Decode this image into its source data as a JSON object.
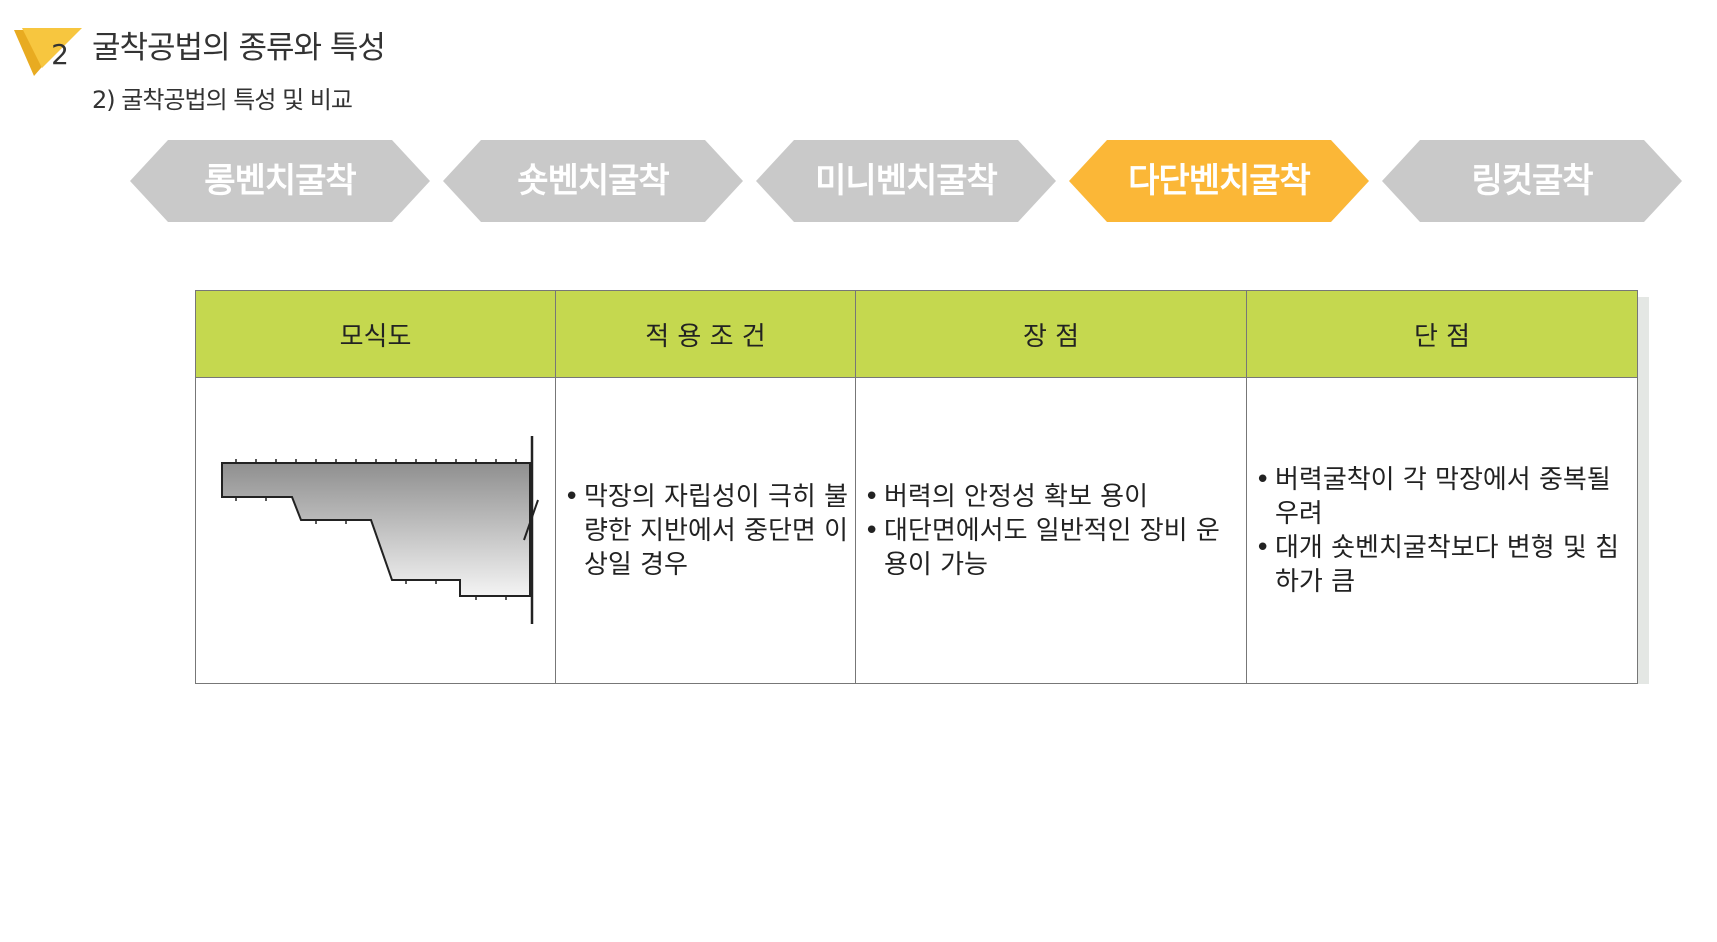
{
  "header": {
    "section_number": "2",
    "section_title": "굴착공법의 종류와 특성",
    "sub_title": "2) 굴착공법의 특성 및 비교"
  },
  "tabs": [
    {
      "label": "롱벤치굴착",
      "active": false
    },
    {
      "label": "숏벤치굴착",
      "active": false
    },
    {
      "label": "미니벤치굴착",
      "active": false
    },
    {
      "label": "다단벤치굴착",
      "active": true
    },
    {
      "label": "링컷굴착",
      "active": false
    }
  ],
  "colors": {
    "tab_inactive": "#c9c9c9",
    "tab_active": "#fbb737",
    "header_row": "#c5d84f",
    "badge": "#f7c63f"
  },
  "table": {
    "headers": [
      "모식도",
      "적 용 조 건",
      "장 점",
      "단 점"
    ],
    "conditions": [
      "막장의 자립성이 극히 불량한 지반에서 중단면 이상일 경우"
    ],
    "advantages": [
      "버력의 안정성 확보 용이",
      "대단면에서도 일반적인 장비 운용이 가능"
    ],
    "disadvantages": [
      "버력굴착이 각 막장에서 중복될 우려",
      "대개 숏벤치굴착보다 변형 및 침하가 큼"
    ]
  }
}
